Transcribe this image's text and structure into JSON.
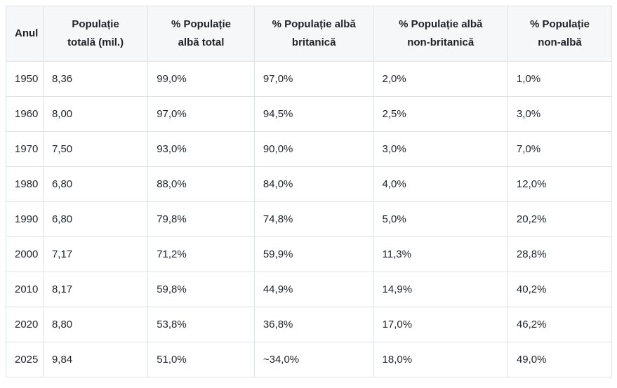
{
  "table": {
    "headers": [
      "Anul",
      "Populație totală (mil.)",
      "% Populație albă total",
      "% Populație albă britanică",
      "% Populație albă non-britanică",
      "% Populație non-albă"
    ],
    "header_lines": [
      [
        "Anul"
      ],
      [
        "Populație",
        "totală (mil.)"
      ],
      [
        "% Populație",
        "albă total"
      ],
      [
        "% Populație albă",
        "britanică"
      ],
      [
        "% Populație albă",
        "non-britanică"
      ],
      [
        "% Populație",
        "non-albă"
      ]
    ],
    "rows": [
      [
        "1950",
        "8,36",
        "99,0%",
        "97,0%",
        "2,0%",
        "1,0%"
      ],
      [
        "1960",
        "8,00",
        "97,0%",
        "94,5%",
        "2,5%",
        "3,0%"
      ],
      [
        "1970",
        "7,50",
        "93,0%",
        "90,0%",
        "3,0%",
        "7,0%"
      ],
      [
        "1980",
        "6,80",
        "88,0%",
        "84,0%",
        "4,0%",
        "12,0%"
      ],
      [
        "1990",
        "6,80",
        "79,8%",
        "74,8%",
        "5,0%",
        "20,2%"
      ],
      [
        "2000",
        "7,17",
        "71,2%",
        "59,9%",
        "11,3%",
        "28,8%"
      ],
      [
        "2010",
        "8,17",
        "59,8%",
        "44,9%",
        "14,9%",
        "40,2%"
      ],
      [
        "2020",
        "8,80",
        "53,8%",
        "36,8%",
        "17,0%",
        "46,2%"
      ],
      [
        "2025",
        "9,84",
        "51,0%",
        "~34,0%",
        "18,0%",
        "49,0%"
      ]
    ]
  }
}
